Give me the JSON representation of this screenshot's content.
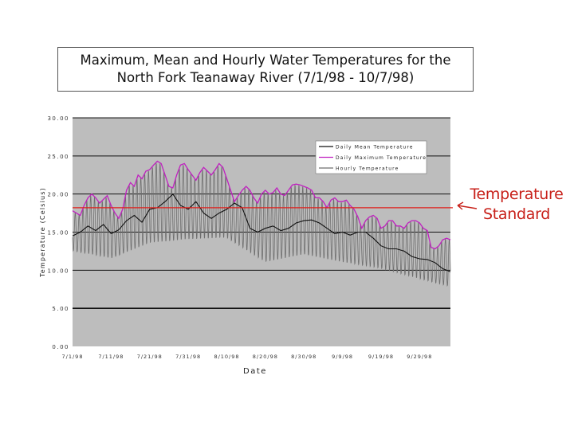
{
  "chart_data": {
    "type": "line",
    "title_lines": [
      "Maximum, Mean and Hourly Water Temperatures for the",
      "North Fork Teanaway River (7/1/98 - 10/7/98)"
    ],
    "xlabel": "Date",
    "ylabel": "Temperature (Celsius)",
    "ylim": [
      0,
      30
    ],
    "yticks": [
      "0.00",
      "5.00",
      "10.00",
      "15.00",
      "20.00",
      "25.00",
      "30.00"
    ],
    "xlim": [
      0,
      98
    ],
    "xtick_days": [
      0,
      10,
      20,
      30,
      40,
      50,
      60,
      70,
      80,
      90
    ],
    "xtick_labels": [
      "7/1/98",
      "7/11/98",
      "7/21/98",
      "7/31/98",
      "8/10/98",
      "8/20/98",
      "8/30/98",
      "9/9/98",
      "9/19/98",
      "9/29/98"
    ],
    "grid": true,
    "legend_position": "top-right",
    "standard_line": {
      "value": 18.2,
      "color": "#e0201c"
    },
    "annotation": [
      "Temperature",
      "Standard"
    ],
    "series": [
      {
        "name": "Daily Mean Temperature",
        "color": "#111111",
        "days": [
          0,
          2,
          4,
          6,
          8,
          10,
          12,
          14,
          16,
          18,
          20,
          22,
          24,
          26,
          28,
          30,
          32,
          34,
          36,
          38,
          40,
          42,
          44,
          46,
          48,
          50,
          52,
          54,
          56,
          58,
          60,
          62,
          64,
          66,
          68,
          70,
          72,
          74,
          76,
          78,
          80,
          82,
          84,
          86,
          88,
          90,
          92,
          94,
          96,
          98
        ],
        "values": [
          14.5,
          15.0,
          15.8,
          15.2,
          16.0,
          14.8,
          15.3,
          16.5,
          17.2,
          16.3,
          18.0,
          18.2,
          19.0,
          20.0,
          18.5,
          18.0,
          19.0,
          17.5,
          16.8,
          17.5,
          18.0,
          18.8,
          18.2,
          15.5,
          15.0,
          15.5,
          15.8,
          15.2,
          15.5,
          16.2,
          16.5,
          16.6,
          16.2,
          15.5,
          14.8,
          15.0,
          14.6,
          15.0,
          15.0,
          14.2,
          13.2,
          12.8,
          12.8,
          12.5,
          11.8,
          11.5,
          11.4,
          11.0,
          10.2,
          9.8
        ]
      },
      {
        "name": "Daily Maximum Temperature",
        "color": "#c020c0",
        "days": [
          0,
          1,
          2,
          3,
          4,
          5,
          6,
          7,
          8,
          9,
          10,
          11,
          12,
          13,
          14,
          15,
          16,
          17,
          18,
          19,
          20,
          21,
          22,
          23,
          24,
          25,
          26,
          27,
          28,
          29,
          30,
          31,
          32,
          33,
          34,
          35,
          36,
          37,
          38,
          39,
          40,
          41,
          42,
          43,
          44,
          45,
          46,
          47,
          48,
          49,
          50,
          51,
          52,
          53,
          54,
          55,
          56,
          57,
          58,
          59,
          60,
          61,
          62,
          63,
          64,
          65,
          66,
          67,
          68,
          69,
          70,
          71,
          72,
          73,
          74,
          75,
          76,
          77,
          78,
          79,
          80,
          81,
          82,
          83,
          84,
          85,
          86,
          87,
          88,
          89,
          90,
          91,
          92,
          93,
          94,
          95,
          96,
          97,
          98
        ],
        "values": [
          17.8,
          17.5,
          17.2,
          18.5,
          19.5,
          20.0,
          19.5,
          18.8,
          19.3,
          19.8,
          18.5,
          17.5,
          16.8,
          18.0,
          20.5,
          21.5,
          21.0,
          22.5,
          22.0,
          23.0,
          23.2,
          23.8,
          24.3,
          24.0,
          22.5,
          21.0,
          20.8,
          22.5,
          23.8,
          24.0,
          23.2,
          22.5,
          21.8,
          22.8,
          23.5,
          23.0,
          22.5,
          23.2,
          24.0,
          23.5,
          22.0,
          20.5,
          19.0,
          19.8,
          20.5,
          21.0,
          20.5,
          19.5,
          18.8,
          20.0,
          20.5,
          20.0,
          20.2,
          20.8,
          20.0,
          19.8,
          20.5,
          21.2,
          21.3,
          21.2,
          21.0,
          20.8,
          20.5,
          19.5,
          19.5,
          19.0,
          18.2,
          19.2,
          19.5,
          19.0,
          19.0,
          19.2,
          18.5,
          18.0,
          17.0,
          15.5,
          16.5,
          17.0,
          17.2,
          16.8,
          15.5,
          15.8,
          16.5,
          16.5,
          15.8,
          15.8,
          15.5,
          16.2,
          16.5,
          16.5,
          16.2,
          15.5,
          15.2,
          13.0,
          12.8,
          13.2,
          14.0,
          14.2,
          14.0
        ]
      },
      {
        "name": "Hourly Temperature",
        "color": "#6e6e6e",
        "description_mode": "daily_range",
        "min_days": [
          0,
          10,
          20,
          30,
          40,
          50,
          60,
          70,
          80,
          90,
          98
        ],
        "min_values": [
          12.5,
          11.5,
          13.5,
          14.0,
          14.2,
          11.0,
          12.0,
          11.0,
          10.2,
          8.8,
          7.8
        ]
      }
    ]
  }
}
